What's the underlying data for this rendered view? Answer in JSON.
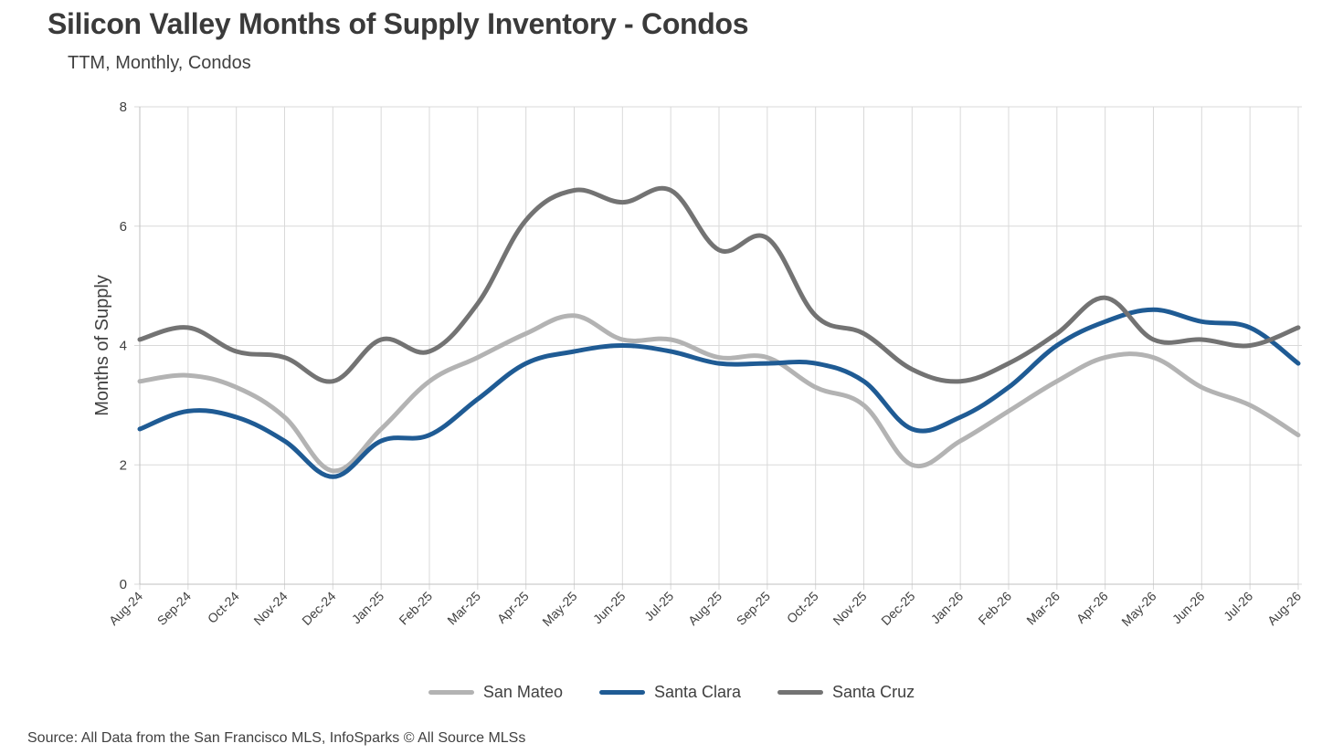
{
  "title": "Silicon Valley Months of Supply Inventory - Condos",
  "subtitle": "TTM, Monthly, Condos",
  "source": "Source: All Data from the San Francisco MLS, InfoSparks © All Source MLSs",
  "chart_data": {
    "type": "line",
    "title": "Silicon Valley Months of Supply Inventory - Condos",
    "subtitle": "TTM, Monthly, Condos",
    "xlabel": "",
    "ylabel": "Months of Supply",
    "ylim": [
      0,
      8
    ],
    "yticks": [
      0,
      2,
      4,
      6,
      8
    ],
    "grid": true,
    "legend_position": "bottom",
    "smooth": true,
    "categories": [
      "Aug-24",
      "Sep-24",
      "Oct-24",
      "Nov-24",
      "Dec-24",
      "Jan-25",
      "Feb-25",
      "Mar-25",
      "Apr-25",
      "May-25",
      "Jun-25",
      "Jul-25",
      "Aug-25",
      "Sep-25",
      "Oct-25",
      "Nov-25",
      "Dec-25",
      "Jan-26",
      "Feb-26",
      "Mar-26",
      "Apr-26",
      "May-26",
      "Jun-26",
      "Jul-26",
      "Aug-26"
    ],
    "series": [
      {
        "name": "San Mateo",
        "color": "#b3b3b3",
        "values": [
          3.4,
          3.5,
          3.3,
          2.8,
          1.9,
          2.6,
          3.4,
          3.8,
          4.2,
          4.5,
          4.1,
          4.1,
          3.8,
          3.8,
          3.3,
          3.0,
          2.0,
          2.4,
          2.9,
          3.4,
          3.8,
          3.8,
          3.3,
          3.0,
          2.5
        ]
      },
      {
        "name": "Santa Clara",
        "color": "#1f5b94",
        "values": [
          2.6,
          2.9,
          2.8,
          2.4,
          1.8,
          2.4,
          2.5,
          3.1,
          3.7,
          3.9,
          4.0,
          3.9,
          3.7,
          3.7,
          3.7,
          3.4,
          2.6,
          2.8,
          3.3,
          4.0,
          4.4,
          4.6,
          4.4,
          4.3,
          3.7
        ]
      },
      {
        "name": "Santa Cruz",
        "color": "#737373",
        "values": [
          4.1,
          4.3,
          3.9,
          3.8,
          3.4,
          4.1,
          3.9,
          4.7,
          6.1,
          6.6,
          6.4,
          6.6,
          5.6,
          5.8,
          4.5,
          4.2,
          3.6,
          3.4,
          3.7,
          4.2,
          4.8,
          4.1,
          4.1,
          4.0,
          4.3
        ]
      }
    ]
  }
}
